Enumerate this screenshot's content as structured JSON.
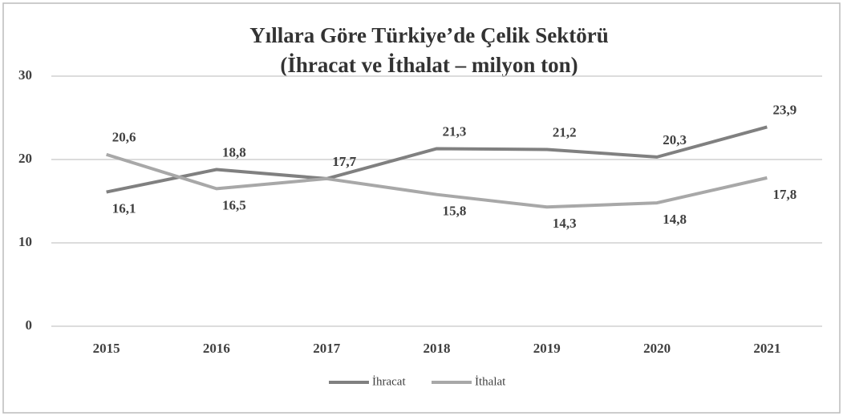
{
  "chart_data": {
    "type": "line",
    "title": "Yıllara Göre Türkiye’de Çelik Sektörü",
    "subtitle": "(İhracat ve İthalat – milyon ton)",
    "categories": [
      "2015",
      "2016",
      "2017",
      "2018",
      "2019",
      "2020",
      "2021"
    ],
    "series": [
      {
        "name": "İhracat",
        "color": "#808080",
        "values": [
          16.1,
          18.8,
          17.7,
          21.3,
          21.2,
          20.3,
          23.9
        ],
        "value_labels": [
          "16,1",
          "18,8",
          "17,7",
          "21,3",
          "21,2",
          "20,3",
          "23,9"
        ]
      },
      {
        "name": "İthalat",
        "color": "#a8a8a8",
        "values": [
          20.6,
          16.5,
          17.7,
          15.8,
          14.3,
          14.8,
          17.8
        ],
        "value_labels": [
          "20,6",
          "16,5",
          "17,7",
          "15,8",
          "14,3",
          "14,8",
          "17,8"
        ]
      }
    ],
    "ylim": [
      0,
      30
    ],
    "yticks": [
      0,
      10,
      20,
      30
    ],
    "grid": true,
    "legend": "bottom"
  }
}
